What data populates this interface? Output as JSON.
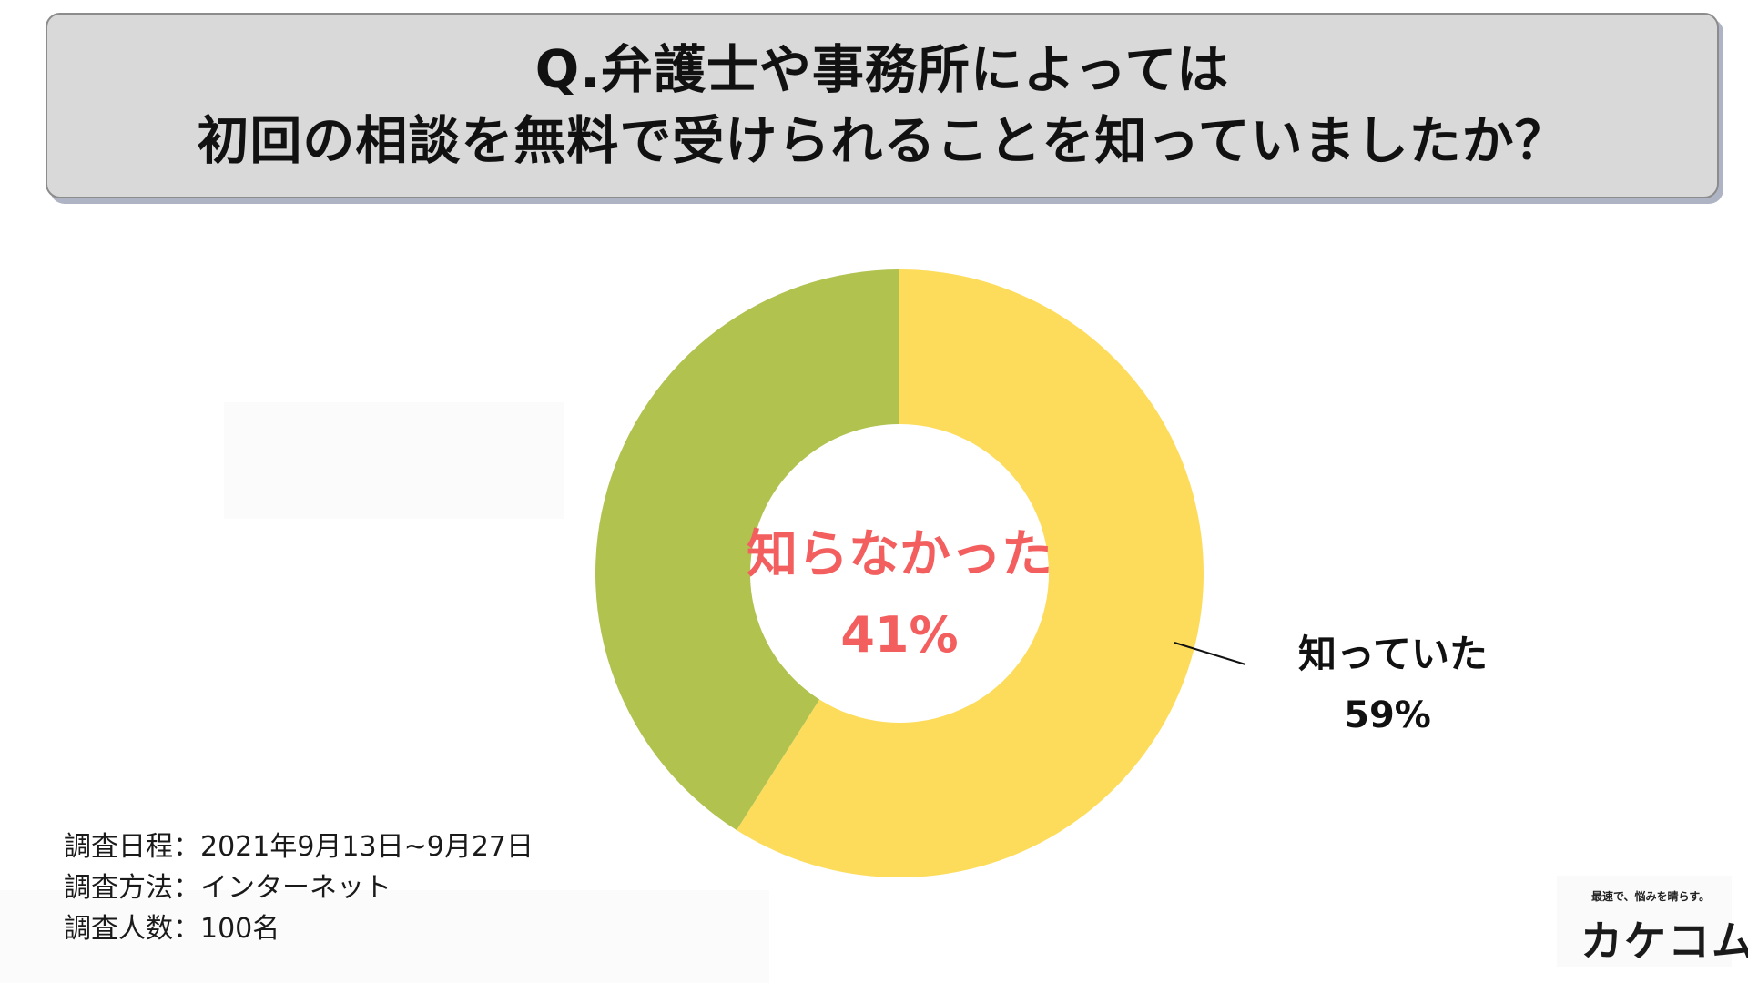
{
  "title": {
    "line1": "Q.弁護士や事務所によっては",
    "line2": "初回の相談を無料で受けられることを知っていましたか？"
  },
  "chart_data": {
    "type": "pie",
    "variant": "donut",
    "title": "Q.弁護士や事務所によっては 初回の相談を無料で受けられることを知っていましたか？",
    "categories": [
      "知っていた",
      "知らなかった"
    ],
    "values": [
      59,
      41
    ],
    "unit": "%",
    "colors": [
      "#fddc5c",
      "#b1c24f"
    ],
    "labels": [
      {
        "name": "知っていた",
        "value_text": "59%",
        "color": "#111111"
      },
      {
        "name": "知らなかった",
        "value_text": "41%",
        "color": "#f35f5f"
      }
    ]
  },
  "survey": {
    "line1": "調査日程：2021年9月13日~9月27日",
    "line2": "調査方法：インターネット",
    "line3": "調査人数：100名"
  },
  "logo": {
    "tagline": "最速で、悩みを晴らす。",
    "name": "カケコム",
    "accent_color": "#f5d142"
  }
}
